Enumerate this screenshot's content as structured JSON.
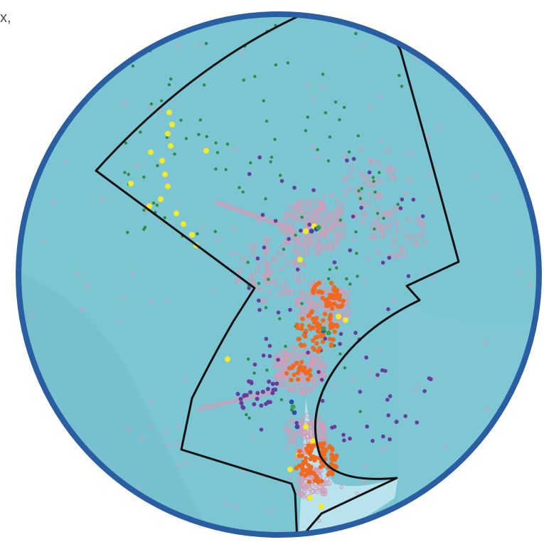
{
  "corner_text": "x,",
  "map": {
    "colors": {
      "ocean": "#7cc5d3",
      "ocean_dark": "#6fb8c9",
      "ring": "#2a5ea3",
      "boundary": "#111111",
      "shelf": "#bfe6ee"
    },
    "categories": [
      {
        "name": "pink-ring",
        "color": "#d59ab6"
      },
      {
        "name": "green",
        "color": "#2f8a3e"
      },
      {
        "name": "purple",
        "color": "#6a3a9c"
      },
      {
        "name": "yellow",
        "color": "#f2ea2a"
      },
      {
        "name": "orange",
        "color": "#ef6a1e"
      },
      {
        "name": "blue",
        "color": "#2f4ea8"
      }
    ]
  }
}
